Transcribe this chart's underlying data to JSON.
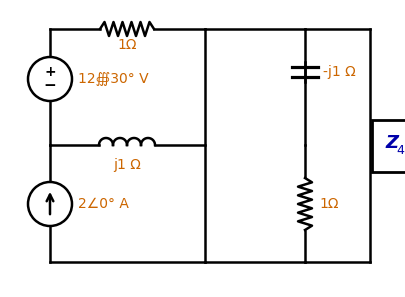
{
  "bg_color": "#ffffff",
  "line_color": "#000000",
  "label_color_orange": "#cc6600",
  "z4_label_color": "#0000aa",
  "voltage_source_label": "12∰30° V",
  "current_source_label": "2∠0° A",
  "resistor_top_label": "1Ω",
  "resistor_mid_label": "1Ω",
  "inductor_label": "j1 Ω",
  "capacitor_label": "-j1 Ω",
  "z4_label": "Z",
  "z4_sub": "4",
  "figsize": [
    4.05,
    2.97
  ],
  "dpi": 100,
  "xl": 50,
  "xm": 205,
  "xr": 305,
  "xf": 370,
  "yt": 268,
  "ymh": 152,
  "yb": 35
}
